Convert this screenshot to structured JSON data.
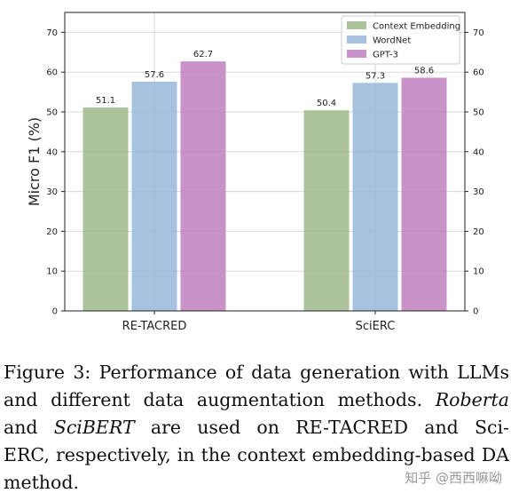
{
  "chart_data": {
    "type": "bar",
    "categories": [
      "RE-TACRED",
      "SciERC"
    ],
    "series": [
      {
        "name": "Context Embedding",
        "values": [
          51.1,
          50.4
        ],
        "color": "#9db889"
      },
      {
        "name": "WordNet",
        "values": [
          57.6,
          57.3
        ],
        "color": "#98b7d9"
      },
      {
        "name": "GPT-3",
        "values": [
          62.7,
          58.6
        ],
        "color": "#c07fc0"
      }
    ],
    "ylabel": "Micro F1 (%)",
    "ylim": [
      0,
      75
    ],
    "yticks": [
      0,
      10,
      20,
      30,
      40,
      50,
      60,
      70
    ],
    "grid": true,
    "legend_position": "top-right",
    "right_axis_ticks": true
  },
  "caption": {
    "line1": "Figure 3: Performance of data generation with LLMs",
    "line2a": "and different data augmentation methods.",
    "line2b": "Roberta",
    "line3a": "and",
    "line3b": "SciBERT",
    "line3c": "are used on RE-TACRED and Sci-",
    "line4": "ERC, respectively, in the context embedding-based DA",
    "line5": "method."
  },
  "watermark": "知乎 @西西嘛呦"
}
